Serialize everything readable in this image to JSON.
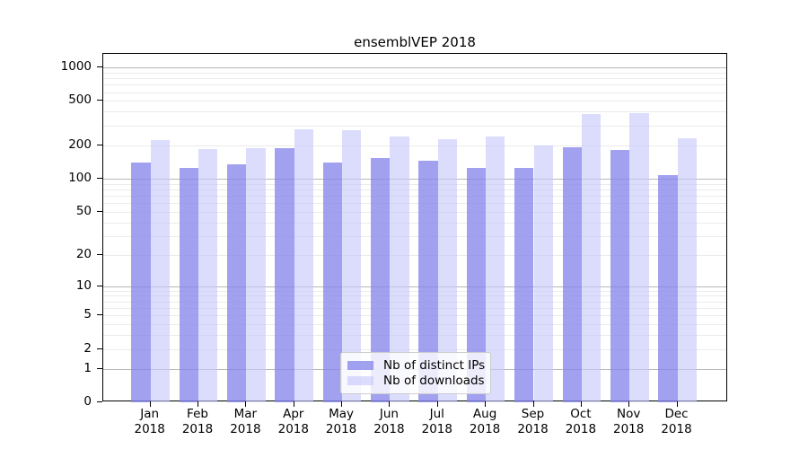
{
  "chart_data": {
    "type": "bar",
    "title": "ensemblVEP 2018",
    "categories": [
      "Jan",
      "Feb",
      "Mar",
      "Apr",
      "May",
      "Jun",
      "Jul",
      "Aug",
      "Sep",
      "Oct",
      "Nov",
      "Dec"
    ],
    "category_year": "2018",
    "series": [
      {
        "name": "Nb of distinct IPs",
        "color": "rgba(134,134,236,0.78)",
        "values": [
          140,
          124,
          134,
          188,
          140,
          154,
          144,
          126,
          124,
          191,
          181,
          107
        ]
      },
      {
        "name": "Nb of downloads",
        "color": "rgba(198,198,252,0.62)",
        "values": [
          222,
          185,
          189,
          278,
          274,
          238,
          226,
          242,
          198,
          380,
          390,
          230
        ]
      }
    ],
    "xlabel": "",
    "ylabel": "",
    "y_scale": "log10(value+1)",
    "y_ticks": [
      0,
      1,
      2,
      5,
      10,
      20,
      50,
      100,
      200,
      500,
      1000
    ],
    "ylim": [
      0,
      1330
    ],
    "grid": "horizontal, major (1,10,100,1000) and minor (2-9 per decade)",
    "legend_position": "inside bottom-center",
    "colors": {
      "major_grid": "#b8b8b8",
      "minor_grid": "#ebebeb",
      "axis": "#000000",
      "text": "#000000"
    }
  }
}
